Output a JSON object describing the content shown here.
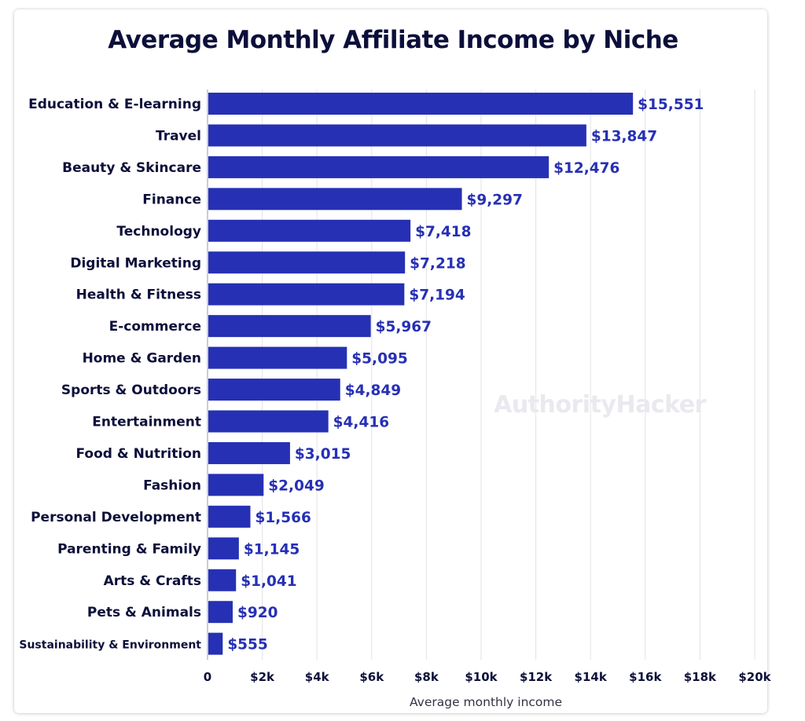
{
  "page": {
    "title": "Average Monthly Affiliate Income by Niche",
    "watermark": "AuthorityHacker"
  },
  "colors": {
    "bar": "#2630b4",
    "value_label": "#2630b4",
    "text": "#0c0f3a",
    "grid": "#e3e3e8"
  },
  "chart_data": {
    "type": "bar",
    "orientation": "horizontal",
    "title": "Average Monthly Affiliate Income by Niche",
    "xlabel": "Average monthly income",
    "ylabel": "",
    "xlim": [
      0,
      20000
    ],
    "grid": true,
    "categories": [
      "Education & E-learning",
      "Travel",
      "Beauty & Skincare",
      "Finance",
      "Technology",
      "Digital Marketing",
      "Health & Fitness",
      "E-commerce",
      "Home & Garden",
      "Sports & Outdoors",
      "Entertainment",
      "Food & Nutrition",
      "Fashion",
      "Personal Development",
      "Parenting & Family",
      "Arts & Crafts",
      "Pets & Animals",
      "Sustainability & Environment"
    ],
    "values": [
      15551,
      13847,
      12476,
      9297,
      7418,
      7218,
      7194,
      5967,
      5095,
      4849,
      4416,
      3015,
      2049,
      1566,
      1145,
      1041,
      920,
      555
    ],
    "data_labels": [
      "$15,551",
      "$13,847",
      "$12,476",
      "$9,297",
      "$7,418",
      "$7,218",
      "$7,194",
      "$5,967",
      "$5,095",
      "$4,849",
      "$4,416",
      "$3,015",
      "$2,049",
      "$1,566",
      "$1,145",
      "$1,041",
      "$920",
      "$555"
    ],
    "x_ticks": [
      0,
      2000,
      4000,
      6000,
      8000,
      10000,
      12000,
      14000,
      16000,
      18000,
      20000
    ],
    "x_tick_labels": [
      "0",
      "$2k",
      "$4k",
      "$6k",
      "$8k",
      "$10k",
      "$12k",
      "$14k",
      "$16k",
      "$18k",
      "$20k"
    ]
  }
}
